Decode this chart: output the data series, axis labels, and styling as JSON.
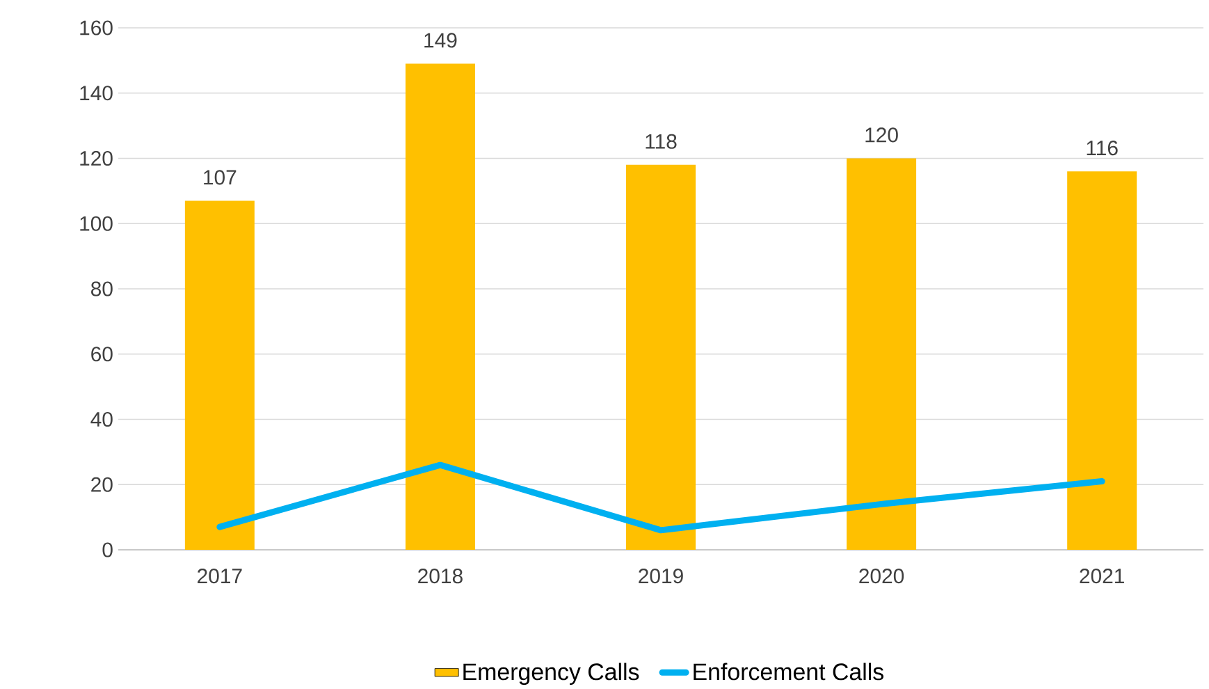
{
  "chart_data": {
    "type": "bar",
    "categories": [
      "2017",
      "2018",
      "2019",
      "2020",
      "2021"
    ],
    "series": [
      {
        "name": "Emergency Calls",
        "color": "#ffc000",
        "values": [
          107,
          149,
          118,
          120,
          116
        ],
        "value_labels": [
          "107",
          "149",
          "118",
          "120",
          "116"
        ]
      },
      {
        "type": "line",
        "name": "Enforcement Calls",
        "color": "#00b0f0",
        "values": [
          7,
          26,
          6,
          14,
          21
        ]
      }
    ],
    "ylim": [
      0,
      160
    ],
    "yticks": [
      0,
      20,
      40,
      60,
      80,
      100,
      120,
      140,
      160
    ],
    "grid": "y",
    "legend": "bottom"
  }
}
